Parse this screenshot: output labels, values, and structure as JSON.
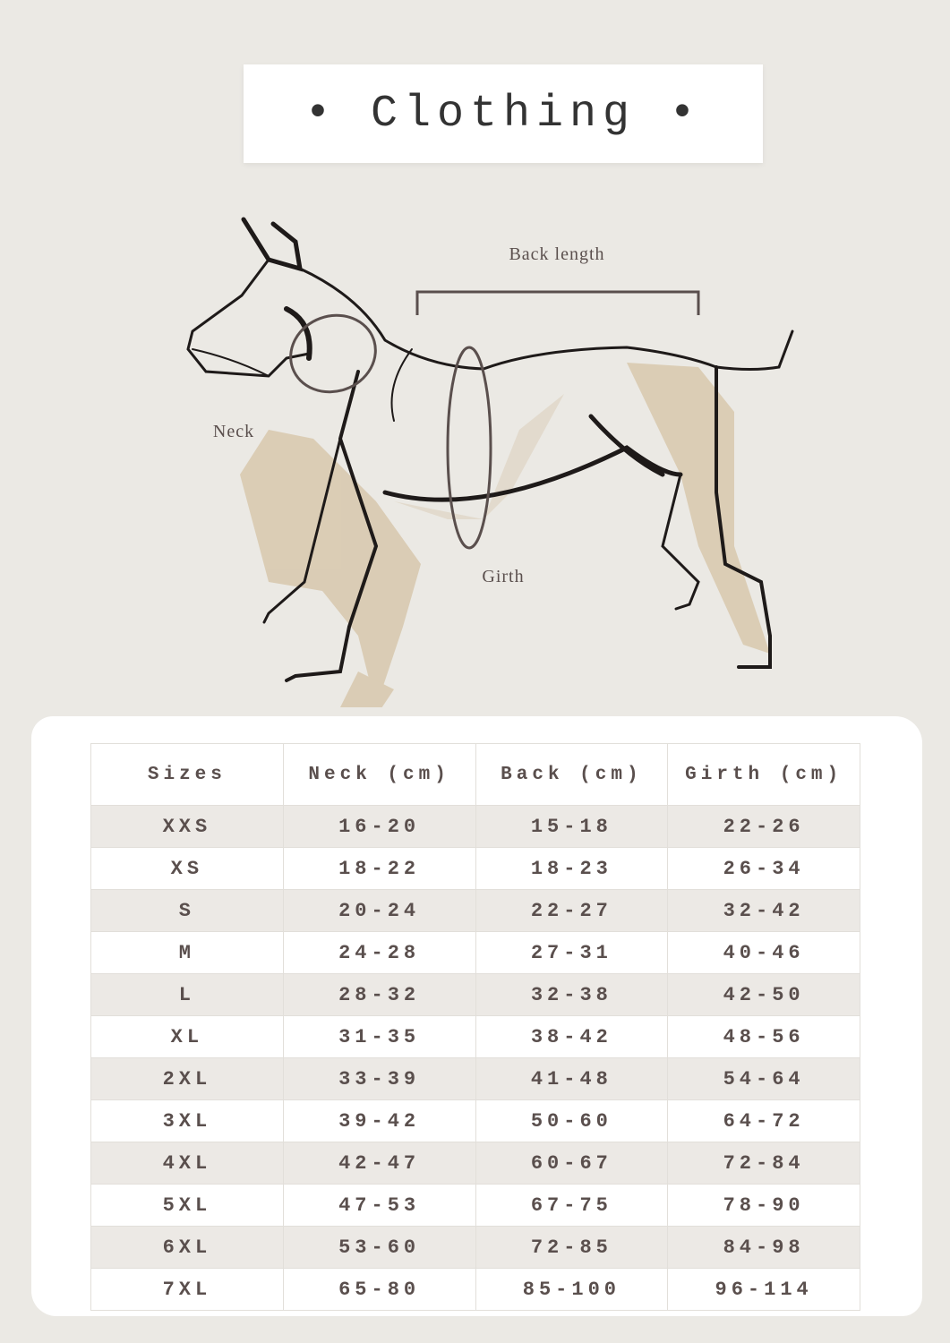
{
  "header": {
    "title": "• Clothing •"
  },
  "diagram": {
    "labels": {
      "back_length": "Back length",
      "neck": "Neck",
      "girth": "Girth"
    }
  },
  "table": {
    "columns": [
      "Sizes",
      "Neck (cm)",
      "Back (cm)",
      "Girth (cm)"
    ],
    "rows": [
      [
        "XXS",
        "16-20",
        "15-18",
        "22-26"
      ],
      [
        "XS",
        "18-22",
        "18-23",
        "26-34"
      ],
      [
        "S",
        "20-24",
        "22-27",
        "32-42"
      ],
      [
        "M",
        "24-28",
        "27-31",
        "40-46"
      ],
      [
        "L",
        "28-32",
        "32-38",
        "42-50"
      ],
      [
        "XL",
        "31-35",
        "38-42",
        "48-56"
      ],
      [
        "2XL",
        "33-39",
        "41-48",
        "54-64"
      ],
      [
        "3XL",
        "39-42",
        "50-60",
        "64-72"
      ],
      [
        "4XL",
        "42-47",
        "60-67",
        "72-84"
      ],
      [
        "5XL",
        "47-53",
        "67-75",
        "78-90"
      ],
      [
        "6XL",
        "53-60",
        "72-85",
        "84-98"
      ],
      [
        "7XL",
        "65-80",
        "85-100",
        "96-114"
      ]
    ]
  }
}
